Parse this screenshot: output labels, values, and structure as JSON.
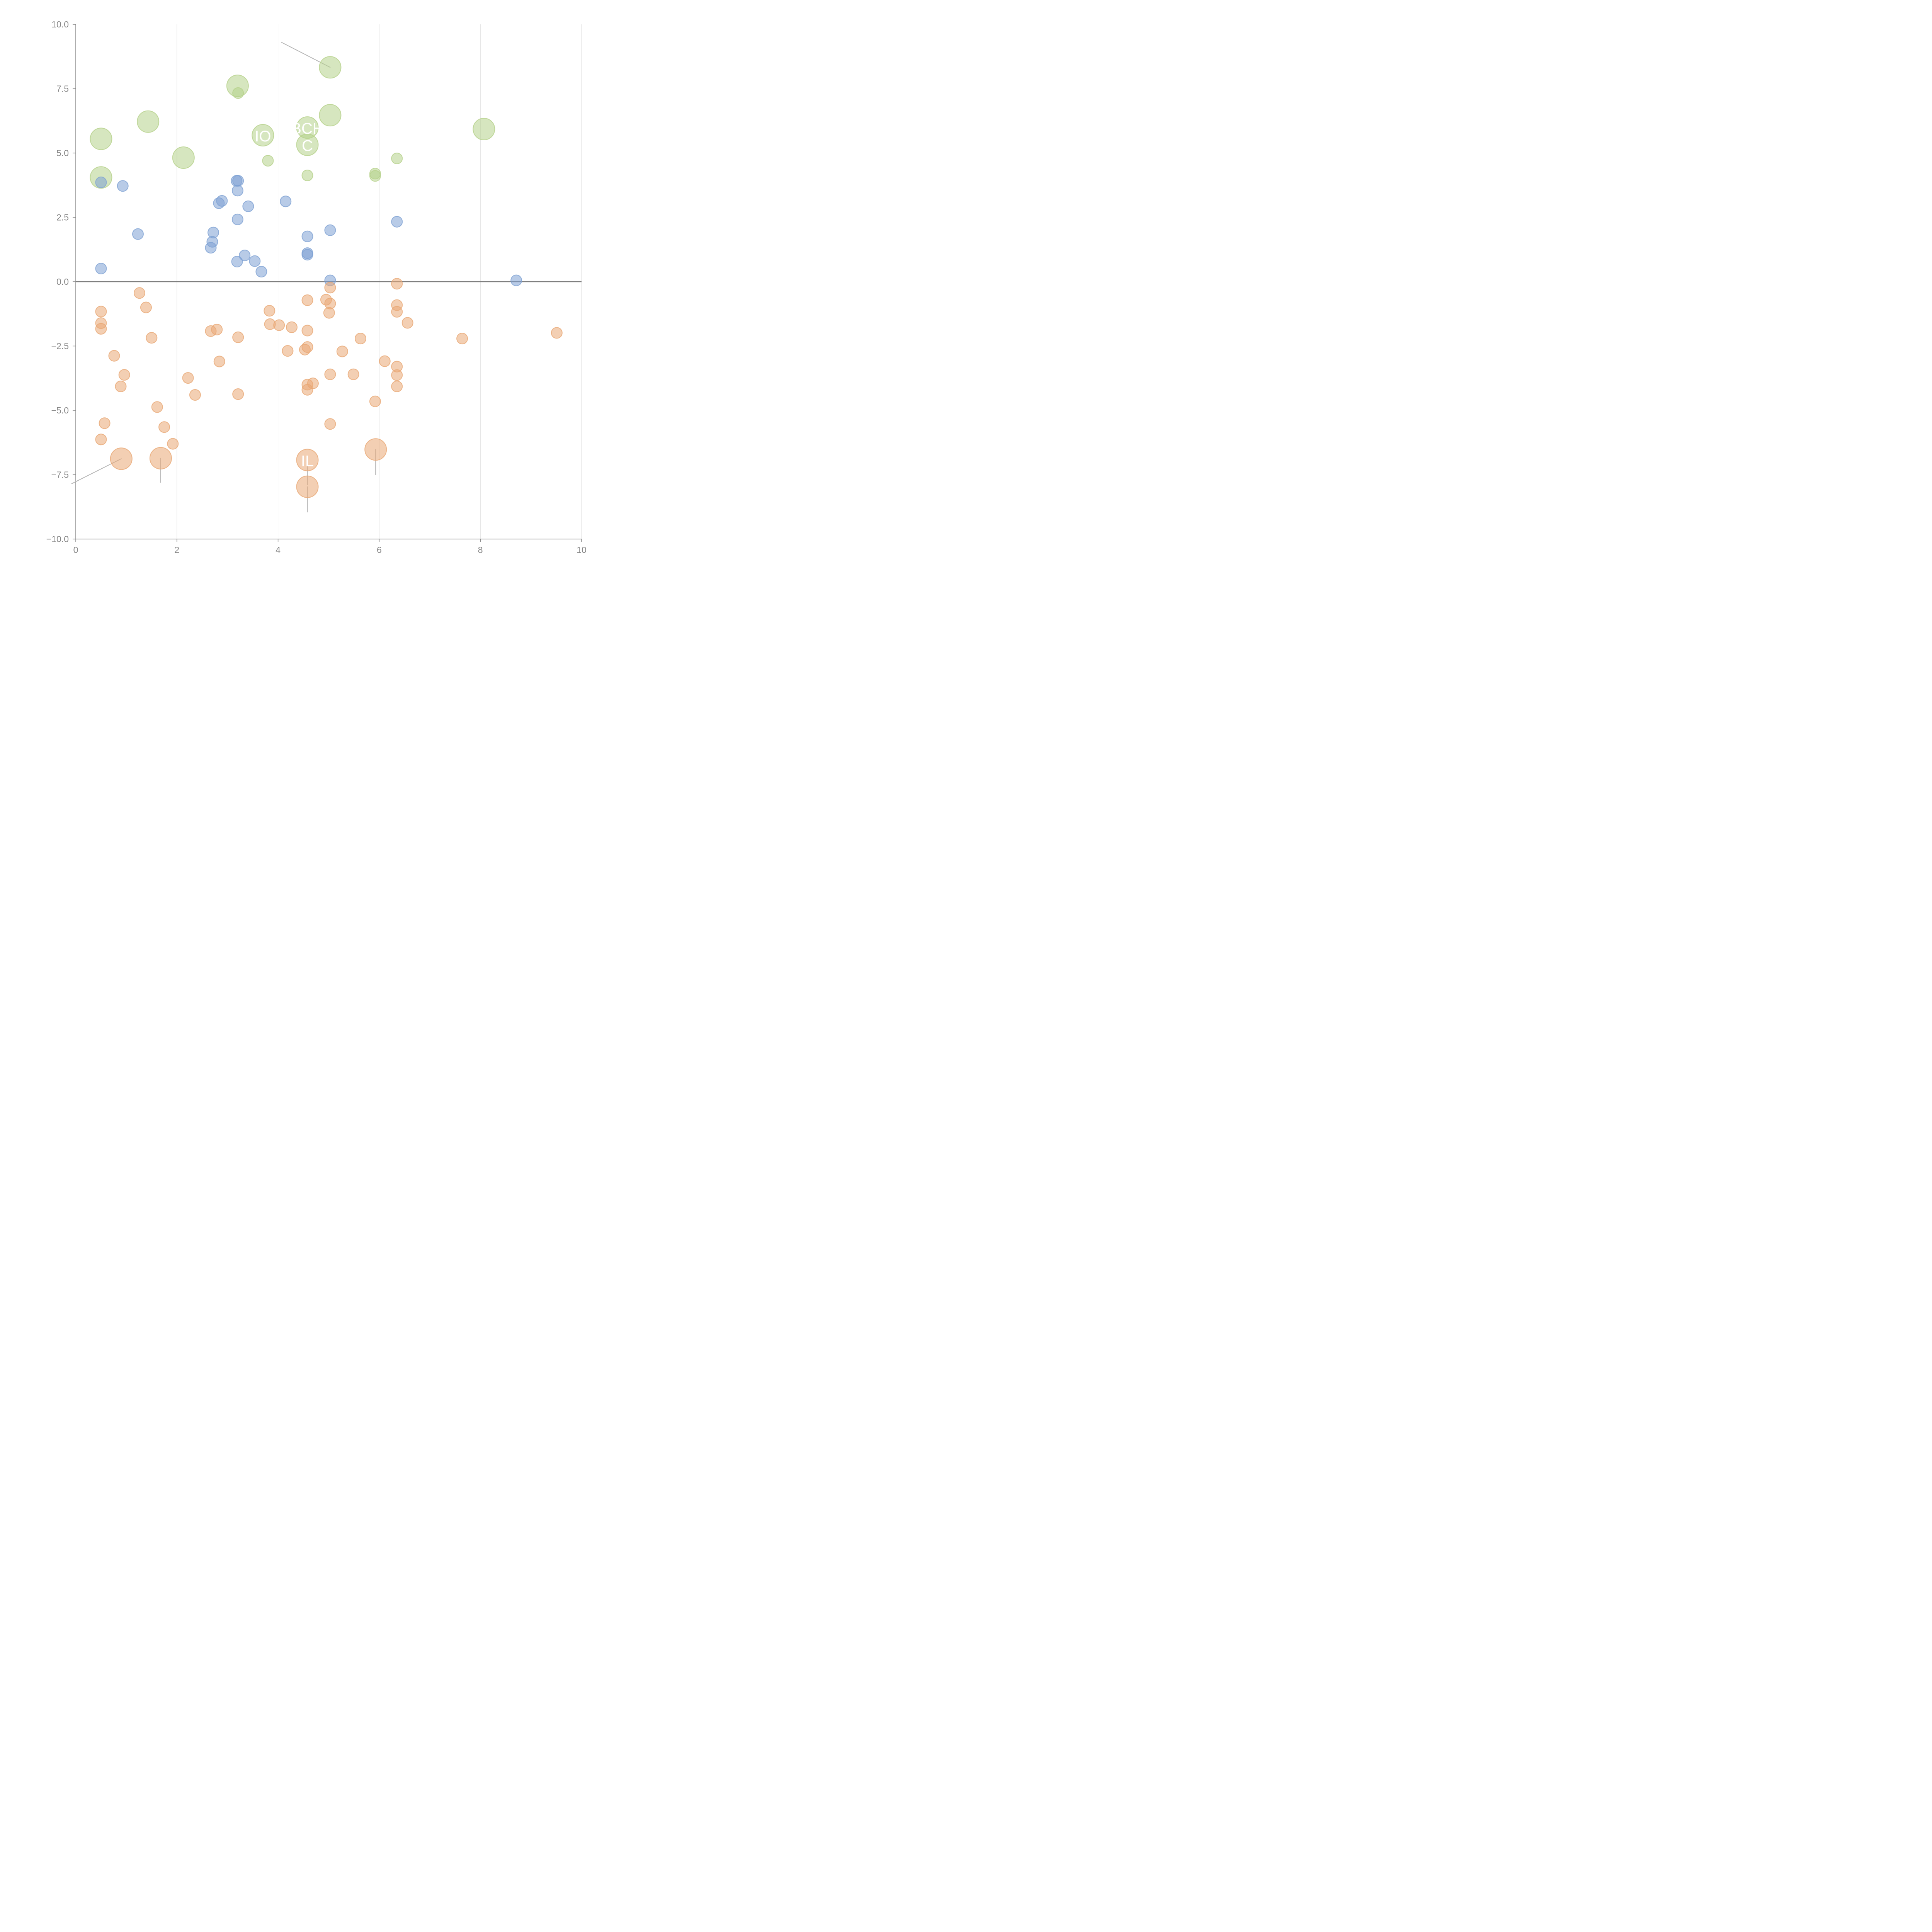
{
  "chart_data": {
    "type": "scatter",
    "title": "",
    "xlabel": "",
    "ylabel": "",
    "xlim": [
      0,
      10
    ],
    "ylim": [
      -10,
      10
    ],
    "x_ticks": [
      "0",
      "2",
      "4",
      "6",
      "8",
      "10"
    ],
    "y_ticks": [
      "10.0",
      "7.5",
      "5.0",
      "2.5",
      "0.0",
      "−2.5",
      "−5.0",
      "−7.5",
      "−10.0"
    ],
    "x_tick_values": [
      0,
      2,
      4,
      6,
      8,
      10
    ],
    "y_tick_values": [
      10,
      7.5,
      5,
      2.5,
      0,
      -2.5,
      -5,
      -7.5,
      -10
    ],
    "grid": "vertical lines at x ticks",
    "reference_line_y": 0,
    "legend": "none",
    "colors": {
      "green": "#b5d18a",
      "blue": "#7ea1d3",
      "orange": "#e9a874",
      "leader": "#b5b5b5",
      "axis": "#858585"
    },
    "series": [
      {
        "name": "green",
        "color": "#b5d18a",
        "points": [
          {
            "x": 0.5,
            "y": 5.55,
            "size": "large",
            "label": "",
            "leader": [
              0.62,
              6.0
            ]
          },
          {
            "x": 0.5,
            "y": 4.05,
            "size": "large",
            "label": "",
            "leader": [
              0.72,
              4.35
            ]
          },
          {
            "x": 1.43,
            "y": 6.22,
            "size": "large",
            "label": "",
            "leader": [
              1.56,
              6.55
            ]
          },
          {
            "x": 2.13,
            "y": 4.82,
            "size": "large",
            "label": "",
            "leader": [
              2.08,
              4.4
            ]
          },
          {
            "x": 3.2,
            "y": 7.61,
            "size": "large",
            "label": "",
            "leader": [
              3.27,
              7.85
            ]
          },
          {
            "x": 3.7,
            "y": 5.69,
            "size": "large",
            "label": "IO",
            "leader": [
              3.57,
              5.45
            ]
          },
          {
            "x": 4.58,
            "y": 5.99,
            "size": "large",
            "label": "BCH",
            "leader": [
              4.5,
              6.12
            ]
          },
          {
            "x": 4.58,
            "y": 5.32,
            "size": "large",
            "label": "C",
            "leader": [
              4.65,
              5.18
            ]
          },
          {
            "x": 5.03,
            "y": 8.33,
            "size": "large",
            "label": "",
            "leader": [
              4.07,
              9.3
            ]
          },
          {
            "x": 5.03,
            "y": 6.47,
            "size": "large",
            "label": "",
            "leader": [
              5.23,
              6.72
            ]
          },
          {
            "x": 8.07,
            "y": 5.93,
            "size": "large",
            "label": "",
            "leader": [
              8.2,
              6.1
            ]
          },
          {
            "x": 3.21,
            "y": 7.33,
            "size": "small"
          },
          {
            "x": 3.8,
            "y": 4.7,
            "size": "small"
          },
          {
            "x": 4.58,
            "y": 4.13,
            "size": "small"
          },
          {
            "x": 5.92,
            "y": 4.2,
            "size": "small"
          },
          {
            "x": 5.92,
            "y": 4.11,
            "size": "small"
          },
          {
            "x": 6.35,
            "y": 4.79,
            "size": "small"
          }
        ]
      },
      {
        "name": "blue",
        "color": "#7ea1d3",
        "points": [
          {
            "x": 0.5,
            "y": 3.86
          },
          {
            "x": 0.93,
            "y": 3.72
          },
          {
            "x": 1.23,
            "y": 1.85
          },
          {
            "x": 0.5,
            "y": 0.51
          },
          {
            "x": 3.18,
            "y": 3.92
          },
          {
            "x": 3.21,
            "y": 3.92
          },
          {
            "x": 3.2,
            "y": 3.54
          },
          {
            "x": 2.83,
            "y": 3.05
          },
          {
            "x": 2.89,
            "y": 3.14
          },
          {
            "x": 3.41,
            "y": 2.93
          },
          {
            "x": 4.15,
            "y": 3.12
          },
          {
            "x": 3.2,
            "y": 2.42
          },
          {
            "x": 2.72,
            "y": 1.91
          },
          {
            "x": 2.7,
            "y": 1.55
          },
          {
            "x": 2.67,
            "y": 1.32
          },
          {
            "x": 3.34,
            "y": 1.02
          },
          {
            "x": 3.19,
            "y": 0.78
          },
          {
            "x": 3.54,
            "y": 0.8
          },
          {
            "x": 3.67,
            "y": 0.39
          },
          {
            "x": 4.58,
            "y": 1.76
          },
          {
            "x": 4.58,
            "y": 1.11
          },
          {
            "x": 4.58,
            "y": 1.05
          },
          {
            "x": 5.03,
            "y": 2.0
          },
          {
            "x": 5.03,
            "y": 0.05
          },
          {
            "x": 6.35,
            "y": 2.33
          },
          {
            "x": 8.71,
            "y": 0.05
          }
        ]
      },
      {
        "name": "orange",
        "color": "#e9a874",
        "points": [
          {
            "x": 1.26,
            "y": -0.44
          },
          {
            "x": 1.39,
            "y": -1.0
          },
          {
            "x": 0.5,
            "y": -1.16
          },
          {
            "x": 0.5,
            "y": -1.61
          },
          {
            "x": 0.5,
            "y": -1.83
          },
          {
            "x": 1.5,
            "y": -2.18
          },
          {
            "x": 0.76,
            "y": -2.88
          },
          {
            "x": 0.96,
            "y": -3.62
          },
          {
            "x": 0.89,
            "y": -4.07
          },
          {
            "x": 0.57,
            "y": -5.5
          },
          {
            "x": 0.5,
            "y": -6.13
          },
          {
            "x": 1.61,
            "y": -4.87
          },
          {
            "x": 1.75,
            "y": -5.65
          },
          {
            "x": 1.92,
            "y": -6.3
          },
          {
            "x": 2.22,
            "y": -3.74
          },
          {
            "x": 2.36,
            "y": -4.4
          },
          {
            "x": 2.67,
            "y": -1.92
          },
          {
            "x": 2.79,
            "y": -1.86
          },
          {
            "x": 2.84,
            "y": -3.1
          },
          {
            "x": 3.21,
            "y": -2.16
          },
          {
            "x": 3.21,
            "y": -4.37
          },
          {
            "x": 3.83,
            "y": -1.13
          },
          {
            "x": 3.84,
            "y": -1.65
          },
          {
            "x": 4.02,
            "y": -1.69
          },
          {
            "x": 4.27,
            "y": -1.77
          },
          {
            "x": 4.19,
            "y": -2.69
          },
          {
            "x": 4.58,
            "y": -0.72
          },
          {
            "x": 4.58,
            "y": -1.9
          },
          {
            "x": 4.58,
            "y": -2.54
          },
          {
            "x": 4.53,
            "y": -2.64
          },
          {
            "x": 4.58,
            "y": -4.0
          },
          {
            "x": 4.69,
            "y": -3.95
          },
          {
            "x": 4.58,
            "y": -4.2
          },
          {
            "x": 4.95,
            "y": -0.7
          },
          {
            "x": 5.03,
            "y": -0.23
          },
          {
            "x": 5.03,
            "y": -0.85
          },
          {
            "x": 5.01,
            "y": -1.21
          },
          {
            "x": 5.27,
            "y": -2.71
          },
          {
            "x": 5.03,
            "y": -3.6
          },
          {
            "x": 5.49,
            "y": -3.6
          },
          {
            "x": 5.63,
            "y": -2.21
          },
          {
            "x": 5.03,
            "y": -5.53
          },
          {
            "x": 5.92,
            "y": -4.65
          },
          {
            "x": 6.11,
            "y": -3.09
          },
          {
            "x": 6.35,
            "y": -0.08
          },
          {
            "x": 6.35,
            "y": -0.91
          },
          {
            "x": 6.35,
            "y": -1.17
          },
          {
            "x": 6.56,
            "y": -1.6
          },
          {
            "x": 6.35,
            "y": -3.3
          },
          {
            "x": 6.35,
            "y": -3.63
          },
          {
            "x": 6.35,
            "y": -4.07
          },
          {
            "x": 7.64,
            "y": -2.21
          },
          {
            "x": 9.51,
            "y": -1.99
          },
          {
            "x": 0.9,
            "y": -6.88,
            "size": "large",
            "label": "",
            "leader": [
              -0.08,
              -7.85
            ]
          },
          {
            "x": 1.68,
            "y": -6.86,
            "size": "large",
            "label": "",
            "leader": [
              1.68,
              -7.8
            ]
          },
          {
            "x": 4.58,
            "y": -6.93,
            "size": "large",
            "label": "IL",
            "leader": [
              4.58,
              -7.9
            ]
          },
          {
            "x": 4.58,
            "y": -7.97,
            "size": "large",
            "label": "",
            "leader": [
              4.58,
              -8.95
            ]
          },
          {
            "x": 5.93,
            "y": -6.52,
            "size": "large",
            "label": "",
            "leader": [
              5.93,
              -7.5
            ]
          }
        ]
      }
    ]
  }
}
